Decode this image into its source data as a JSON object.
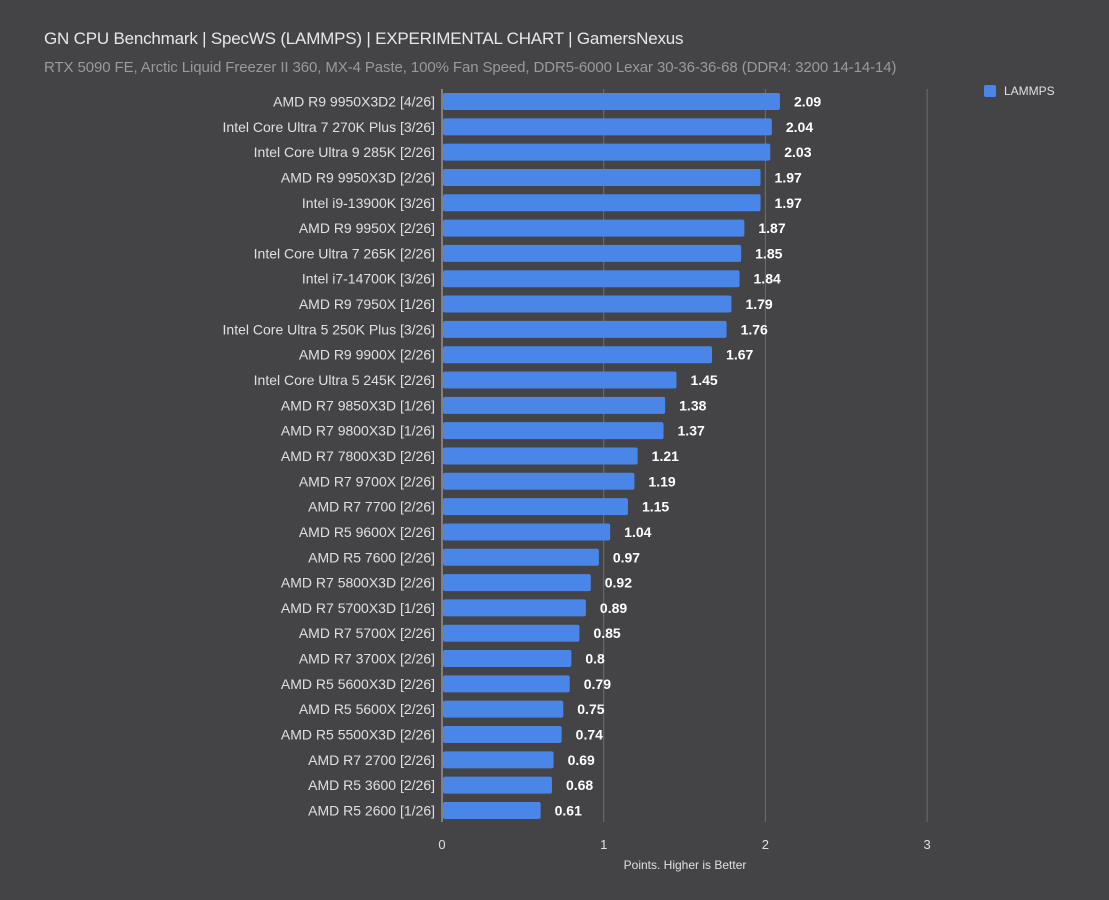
{
  "chart_data": {
    "type": "bar",
    "orientation": "horizontal",
    "title": "GN CPU Benchmark | SpecWS (LAMMPS) | EXPERIMENTAL CHART | GamersNexus",
    "subtitle": "RTX 5090 FE, Arctic Liquid Freezer II 360, MX-4 Paste, 100% Fan Speed, DDR5-6000 Lexar 30-36-36-68 (DDR4: 3200 14-14-14)",
    "xlabel": "Points. Higher is Better",
    "ylabel": "",
    "xlim": [
      0,
      3
    ],
    "xticks": [
      "0",
      "1",
      "2",
      "3"
    ],
    "grid": true,
    "legend_position": "top-right",
    "series": [
      {
        "name": "LAMMPS",
        "color": "#4a86e8",
        "values": [
          2.09,
          2.04,
          2.03,
          1.97,
          1.97,
          1.87,
          1.85,
          1.84,
          1.79,
          1.76,
          1.67,
          1.45,
          1.38,
          1.37,
          1.21,
          1.19,
          1.15,
          1.04,
          0.97,
          0.92,
          0.89,
          0.85,
          0.8,
          0.79,
          0.75,
          0.74,
          0.69,
          0.68,
          0.61
        ],
        "labels": [
          "2.09",
          "2.04",
          "2.03",
          "1.97",
          "1.97",
          "1.87",
          "1.85",
          "1.84",
          "1.79",
          "1.76",
          "1.67",
          "1.45",
          "1.38",
          "1.37",
          "1.21",
          "1.19",
          "1.15",
          "1.04",
          "0.97",
          "0.92",
          "0.89",
          "0.85",
          "0.8",
          "0.79",
          "0.75",
          "0.74",
          "0.69",
          "0.68",
          "0.61"
        ]
      }
    ],
    "categories": [
      "AMD R9 9950X3D2 [4/26]",
      "Intel Core Ultra 7 270K Plus [3/26]",
      "Intel Core Ultra 9 285K [2/26]",
      "AMD R9 9950X3D [2/26]",
      "Intel i9-13900K [3/26]",
      "AMD R9 9950X [2/26]",
      "Intel Core Ultra 7 265K [2/26]",
      "Intel i7-14700K [3/26]",
      "AMD R9 7950X [1/26]",
      "Intel Core Ultra 5 250K Plus [3/26]",
      "AMD R9 9900X [2/26]",
      "Intel Core Ultra 5 245K [2/26]",
      "AMD R7 9850X3D [1/26]",
      "AMD R7 9800X3D [1/26]",
      "AMD R7 7800X3D [2/26]",
      "AMD R7 9700X [2/26]",
      "AMD R7 7700 [2/26]",
      "AMD R5 9600X [2/26]",
      "AMD R5 7600 [2/26]",
      "AMD R7 5800X3D [2/26]",
      "AMD R7 5700X3D [1/26]",
      "AMD R7 5700X [2/26]",
      "AMD R7 3700X [2/26]",
      "AMD R5 5600X3D [2/26]",
      "AMD R5 5600X [2/26]",
      "AMD R5 5500X3D [2/26]",
      "AMD R7 2700 [2/26]",
      "AMD R5 3600 [2/26]",
      "AMD R5 2600 [1/26]"
    ]
  },
  "colors": {
    "background": "#444345",
    "bar": "#4a86e8",
    "gridline": "#6e6e70",
    "axis_text": "#e0e0e0",
    "value_label": "#ffffff"
  }
}
